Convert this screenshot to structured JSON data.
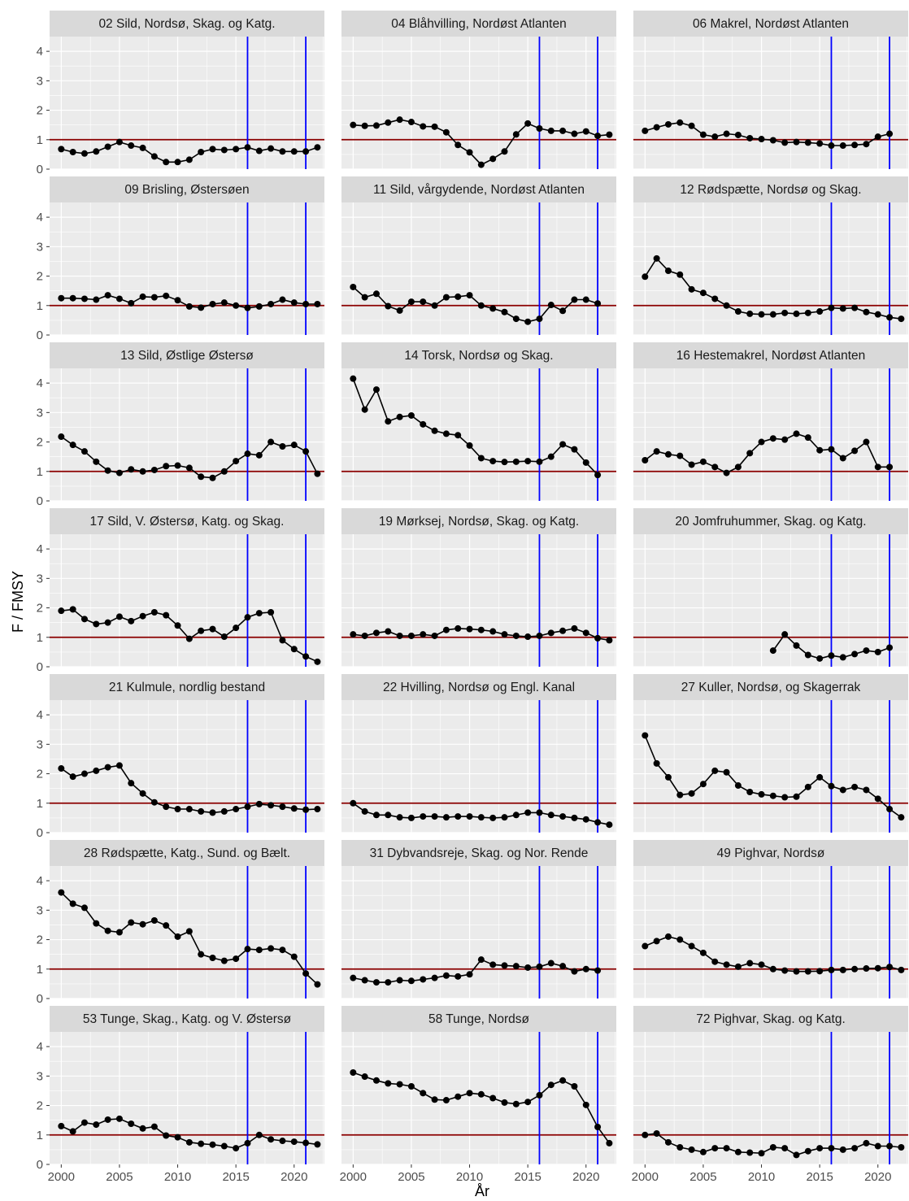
{
  "chart_data": {
    "type": "line",
    "xlabel": "År",
    "ylabel": "F / FMSY",
    "xlim": [
      1999,
      2022.6
    ],
    "ylim": [
      0,
      4.5
    ],
    "x_ticks": [
      2000,
      2005,
      2010,
      2015,
      2020
    ],
    "y_ticks": [
      0,
      1,
      2,
      3,
      4
    ],
    "grid": true,
    "reference_line": {
      "y": 1,
      "color": "#8b0000"
    },
    "vertical_lines": {
      "x": [
        2016,
        2021
      ],
      "color": "#0000ff"
    },
    "line_color": "#000000",
    "panel_background": "#ebebeb",
    "strip_background": "#d9d9d9",
    "panels": [
      {
        "title": "02 Sild, Nordsø, Skag. og Katg.",
        "x": [
          2000,
          2001,
          2002,
          2003,
          2004,
          2005,
          2006,
          2007,
          2008,
          2009,
          2010,
          2011,
          2012,
          2013,
          2014,
          2015,
          2016,
          2017,
          2018,
          2019,
          2020,
          2021,
          2022
        ],
        "y": [
          0.68,
          0.58,
          0.53,
          0.6,
          0.76,
          0.92,
          0.8,
          0.72,
          0.43,
          0.24,
          0.24,
          0.32,
          0.58,
          0.68,
          0.65,
          0.68,
          0.74,
          0.62,
          0.7,
          0.6,
          0.6,
          0.6,
          0.74
        ]
      },
      {
        "title": "04 Blåhvilling, Nordøst Atlanten",
        "x": [
          2000,
          2001,
          2002,
          2003,
          2004,
          2005,
          2006,
          2007,
          2008,
          2009,
          2010,
          2011,
          2012,
          2013,
          2014,
          2015,
          2016,
          2017,
          2018,
          2019,
          2020,
          2021,
          2022
        ],
        "y": [
          1.5,
          1.47,
          1.48,
          1.58,
          1.68,
          1.6,
          1.45,
          1.44,
          1.25,
          0.82,
          0.57,
          0.15,
          0.35,
          0.6,
          1.18,
          1.55,
          1.38,
          1.3,
          1.3,
          1.2,
          1.28,
          1.13,
          1.17
        ]
      },
      {
        "title": "06 Makrel, Nordøst Atlanten",
        "x": [
          2000,
          2001,
          2002,
          2003,
          2004,
          2005,
          2006,
          2007,
          2008,
          2009,
          2010,
          2011,
          2012,
          2013,
          2014,
          2015,
          2016,
          2017,
          2018,
          2019,
          2020,
          2021
        ],
        "y": [
          1.3,
          1.42,
          1.52,
          1.58,
          1.47,
          1.17,
          1.1,
          1.2,
          1.16,
          1.05,
          1.02,
          0.98,
          0.9,
          0.92,
          0.9,
          0.87,
          0.8,
          0.8,
          0.82,
          0.85,
          1.1,
          1.2
        ]
      },
      {
        "title": "09 Brisling, Østersøen",
        "x": [
          2000,
          2001,
          2002,
          2003,
          2004,
          2005,
          2006,
          2007,
          2008,
          2009,
          2010,
          2011,
          2012,
          2013,
          2014,
          2015,
          2016,
          2017,
          2018,
          2019,
          2020,
          2021,
          2022
        ],
        "y": [
          1.25,
          1.25,
          1.23,
          1.2,
          1.35,
          1.23,
          1.08,
          1.3,
          1.28,
          1.33,
          1.18,
          0.97,
          0.93,
          1.05,
          1.1,
          1.0,
          0.92,
          0.97,
          1.05,
          1.2,
          1.1,
          1.05,
          1.05
        ]
      },
      {
        "title": "11 Sild, vårgydende, Nordøst Atlanten",
        "x": [
          2000,
          2001,
          2002,
          2003,
          2004,
          2005,
          2006,
          2007,
          2008,
          2009,
          2010,
          2011,
          2012,
          2013,
          2014,
          2015,
          2016,
          2017,
          2018,
          2019,
          2020,
          2021
        ],
        "y": [
          1.63,
          1.28,
          1.4,
          0.98,
          0.83,
          1.13,
          1.13,
          1.0,
          1.28,
          1.3,
          1.35,
          1.0,
          0.9,
          0.78,
          0.55,
          0.45,
          0.55,
          1.02,
          0.82,
          1.2,
          1.2,
          1.07
        ]
      },
      {
        "title": "12 Rødspætte,  Nordsø og  Skag.",
        "x": [
          2000,
          2001,
          2002,
          2003,
          2004,
          2005,
          2006,
          2007,
          2008,
          2009,
          2010,
          2011,
          2012,
          2013,
          2014,
          2015,
          2016,
          2017,
          2018,
          2019,
          2020,
          2021,
          2022
        ],
        "y": [
          1.98,
          2.6,
          2.18,
          2.05,
          1.55,
          1.43,
          1.23,
          1.0,
          0.8,
          0.72,
          0.7,
          0.7,
          0.75,
          0.72,
          0.75,
          0.8,
          0.92,
          0.9,
          0.92,
          0.78,
          0.7,
          0.6,
          0.55
        ]
      },
      {
        "title": "13 Sild, Østlige Østersø",
        "x": [
          2000,
          2001,
          2002,
          2003,
          2004,
          2005,
          2006,
          2007,
          2008,
          2009,
          2010,
          2011,
          2012,
          2013,
          2014,
          2015,
          2016,
          2017,
          2018,
          2019,
          2020,
          2021,
          2022
        ],
        "y": [
          2.18,
          1.9,
          1.68,
          1.33,
          1.03,
          0.95,
          1.07,
          1.0,
          1.05,
          1.18,
          1.2,
          1.12,
          0.82,
          0.78,
          1.0,
          1.35,
          1.6,
          1.55,
          2.0,
          1.85,
          1.9,
          1.68,
          0.92
        ]
      },
      {
        "title": "14 Torsk,  Nordsø og  Skag.",
        "x": [
          2000,
          2001,
          2002,
          2003,
          2004,
          2005,
          2006,
          2007,
          2008,
          2009,
          2010,
          2011,
          2012,
          2013,
          2014,
          2015,
          2016,
          2017,
          2018,
          2019,
          2020,
          2021
        ],
        "y": [
          4.15,
          3.1,
          3.78,
          2.7,
          2.85,
          2.9,
          2.6,
          2.38,
          2.28,
          2.23,
          1.88,
          1.45,
          1.35,
          1.32,
          1.33,
          1.35,
          1.33,
          1.5,
          1.92,
          1.75,
          1.3,
          0.88
        ]
      },
      {
        "title": "16 Hestemakrel, Nordøst Atlanten",
        "x": [
          2000,
          2001,
          2002,
          2003,
          2004,
          2005,
          2006,
          2007,
          2008,
          2009,
          2010,
          2011,
          2012,
          2013,
          2014,
          2015,
          2016,
          2017,
          2018,
          2019,
          2020,
          2021
        ],
        "y": [
          1.38,
          1.68,
          1.58,
          1.53,
          1.23,
          1.33,
          1.15,
          0.95,
          1.15,
          1.62,
          2.0,
          2.12,
          2.08,
          2.28,
          2.15,
          1.72,
          1.75,
          1.45,
          1.7,
          2.0,
          1.15,
          1.15
        ]
      },
      {
        "title": "17 Sild, V. Østersø,  Katg. og Skag.",
        "x": [
          2000,
          2001,
          2002,
          2003,
          2004,
          2005,
          2006,
          2007,
          2008,
          2009,
          2010,
          2011,
          2012,
          2013,
          2014,
          2015,
          2016,
          2017,
          2018,
          2019,
          2020,
          2021,
          2022
        ],
        "y": [
          1.9,
          1.95,
          1.62,
          1.45,
          1.5,
          1.7,
          1.55,
          1.72,
          1.85,
          1.75,
          1.4,
          0.95,
          1.22,
          1.28,
          1.02,
          1.32,
          1.68,
          1.82,
          1.85,
          0.9,
          0.6,
          0.35,
          0.17
        ]
      },
      {
        "title": "19 Mørksej, Nordsø, Skag.  og  Katg.",
        "x": [
          2000,
          2001,
          2002,
          2003,
          2004,
          2005,
          2006,
          2007,
          2008,
          2009,
          2010,
          2011,
          2012,
          2013,
          2014,
          2015,
          2016,
          2017,
          2018,
          2019,
          2020,
          2021,
          2022
        ],
        "y": [
          1.1,
          1.05,
          1.15,
          1.2,
          1.05,
          1.05,
          1.1,
          1.05,
          1.25,
          1.3,
          1.28,
          1.25,
          1.2,
          1.1,
          1.05,
          1.02,
          1.05,
          1.15,
          1.22,
          1.3,
          1.15,
          0.97,
          0.9
        ]
      },
      {
        "title": "20 Jomfruhummer, Skag. og Katg.",
        "x": [
          2011,
          2012,
          2013,
          2014,
          2015,
          2016,
          2017,
          2018,
          2019,
          2020,
          2021
        ],
        "y": [
          0.55,
          1.1,
          0.72,
          0.4,
          0.28,
          0.38,
          0.32,
          0.43,
          0.55,
          0.5,
          0.65
        ]
      },
      {
        "title": "21 Kulmule, nordlig bestand",
        "x": [
          2000,
          2001,
          2002,
          2003,
          2004,
          2005,
          2006,
          2007,
          2008,
          2009,
          2010,
          2011,
          2012,
          2013,
          2014,
          2015,
          2016,
          2017,
          2018,
          2019,
          2020,
          2021,
          2022
        ],
        "y": [
          2.18,
          1.9,
          2.0,
          2.1,
          2.22,
          2.28,
          1.68,
          1.33,
          1.03,
          0.88,
          0.8,
          0.8,
          0.72,
          0.68,
          0.72,
          0.8,
          0.88,
          0.97,
          0.93,
          0.88,
          0.82,
          0.78,
          0.8
        ]
      },
      {
        "title": "22 Hvilling, Nordsø og Engl. Kanal",
        "x": [
          2000,
          2001,
          2002,
          2003,
          2004,
          2005,
          2006,
          2007,
          2008,
          2009,
          2010,
          2011,
          2012,
          2013,
          2014,
          2015,
          2016,
          2017,
          2018,
          2019,
          2020,
          2021,
          2022
        ],
        "y": [
          1.0,
          0.72,
          0.6,
          0.6,
          0.52,
          0.5,
          0.55,
          0.55,
          0.52,
          0.55,
          0.55,
          0.52,
          0.5,
          0.52,
          0.6,
          0.68,
          0.68,
          0.6,
          0.55,
          0.5,
          0.45,
          0.35,
          0.27
        ]
      },
      {
        "title": "27 Kuller, Nordsø, og Skagerrak",
        "x": [
          2000,
          2001,
          2002,
          2003,
          2004,
          2005,
          2006,
          2007,
          2008,
          2009,
          2010,
          2011,
          2012,
          2013,
          2014,
          2015,
          2016,
          2017,
          2018,
          2019,
          2020,
          2021,
          2022
        ],
        "y": [
          3.3,
          2.35,
          1.88,
          1.28,
          1.33,
          1.65,
          2.1,
          2.05,
          1.6,
          1.38,
          1.3,
          1.25,
          1.2,
          1.22,
          1.55,
          1.88,
          1.58,
          1.45,
          1.55,
          1.45,
          1.15,
          0.8,
          0.52
        ]
      },
      {
        "title": "28 Rødspætte, Katg., Sund. og Bælt.",
        "x": [
          2000,
          2001,
          2002,
          2003,
          2004,
          2005,
          2006,
          2007,
          2008,
          2009,
          2010,
          2011,
          2012,
          2013,
          2014,
          2015,
          2016,
          2017,
          2018,
          2019,
          2020,
          2021,
          2022
        ],
        "y": [
          3.6,
          3.22,
          3.08,
          2.55,
          2.3,
          2.25,
          2.58,
          2.52,
          2.65,
          2.48,
          2.1,
          2.28,
          1.5,
          1.38,
          1.28,
          1.35,
          1.68,
          1.65,
          1.7,
          1.65,
          1.42,
          0.85,
          0.48
        ]
      },
      {
        "title": "31 Dybvandsreje, Skag. og Nor. Rende",
        "x": [
          2000,
          2001,
          2002,
          2003,
          2004,
          2005,
          2006,
          2007,
          2008,
          2009,
          2010,
          2011,
          2012,
          2013,
          2014,
          2015,
          2016,
          2017,
          2018,
          2019,
          2020,
          2021
        ],
        "y": [
          0.7,
          0.62,
          0.55,
          0.55,
          0.62,
          0.6,
          0.65,
          0.7,
          0.78,
          0.75,
          0.82,
          1.32,
          1.15,
          1.12,
          1.1,
          1.05,
          1.08,
          1.2,
          1.1,
          0.92,
          1.0,
          0.95
        ]
      },
      {
        "title": "49 Pighvar, Nordsø",
        "x": [
          2000,
          2001,
          2002,
          2003,
          2004,
          2005,
          2006,
          2007,
          2008,
          2009,
          2010,
          2011,
          2012,
          2013,
          2014,
          2015,
          2016,
          2017,
          2018,
          2019,
          2020,
          2021,
          2022
        ],
        "y": [
          1.78,
          1.95,
          2.1,
          2.0,
          1.78,
          1.55,
          1.25,
          1.15,
          1.08,
          1.2,
          1.15,
          1.0,
          0.95,
          0.92,
          0.92,
          0.93,
          0.97,
          0.97,
          1.0,
          1.02,
          1.03,
          1.07,
          0.97
        ]
      },
      {
        "title": "53 Tunge, Skag., Katg. og V. Østersø",
        "x": [
          2000,
          2001,
          2002,
          2003,
          2004,
          2005,
          2006,
          2007,
          2008,
          2009,
          2010,
          2011,
          2012,
          2013,
          2014,
          2015,
          2016,
          2017,
          2018,
          2019,
          2020,
          2021,
          2022
        ],
        "y": [
          1.3,
          1.12,
          1.42,
          1.35,
          1.52,
          1.55,
          1.38,
          1.22,
          1.28,
          0.98,
          0.92,
          0.75,
          0.7,
          0.67,
          0.62,
          0.55,
          0.72,
          1.0,
          0.85,
          0.8,
          0.77,
          0.73,
          0.68
        ]
      },
      {
        "title": "58 Tunge, Nordsø",
        "x": [
          2000,
          2001,
          2002,
          2003,
          2004,
          2005,
          2006,
          2007,
          2008,
          2009,
          2010,
          2011,
          2012,
          2013,
          2014,
          2015,
          2016,
          2017,
          2018,
          2019,
          2020,
          2021,
          2022
        ],
        "y": [
          3.12,
          2.98,
          2.85,
          2.75,
          2.72,
          2.65,
          2.42,
          2.2,
          2.18,
          2.3,
          2.42,
          2.38,
          2.25,
          2.1,
          2.05,
          2.12,
          2.35,
          2.7,
          2.85,
          2.65,
          2.02,
          1.27,
          0.72
        ]
      },
      {
        "title": "72 Pighvar, Skag. og Katg.",
        "x": [
          2000,
          2001,
          2002,
          2003,
          2004,
          2005,
          2006,
          2007,
          2008,
          2009,
          2010,
          2011,
          2012,
          2013,
          2014,
          2015,
          2016,
          2017,
          2018,
          2019,
          2020,
          2021,
          2022
        ],
        "y": [
          1.0,
          1.05,
          0.75,
          0.58,
          0.5,
          0.42,
          0.55,
          0.55,
          0.42,
          0.4,
          0.38,
          0.58,
          0.55,
          0.32,
          0.45,
          0.55,
          0.55,
          0.5,
          0.55,
          0.72,
          0.62,
          0.62,
          0.58
        ]
      }
    ]
  }
}
